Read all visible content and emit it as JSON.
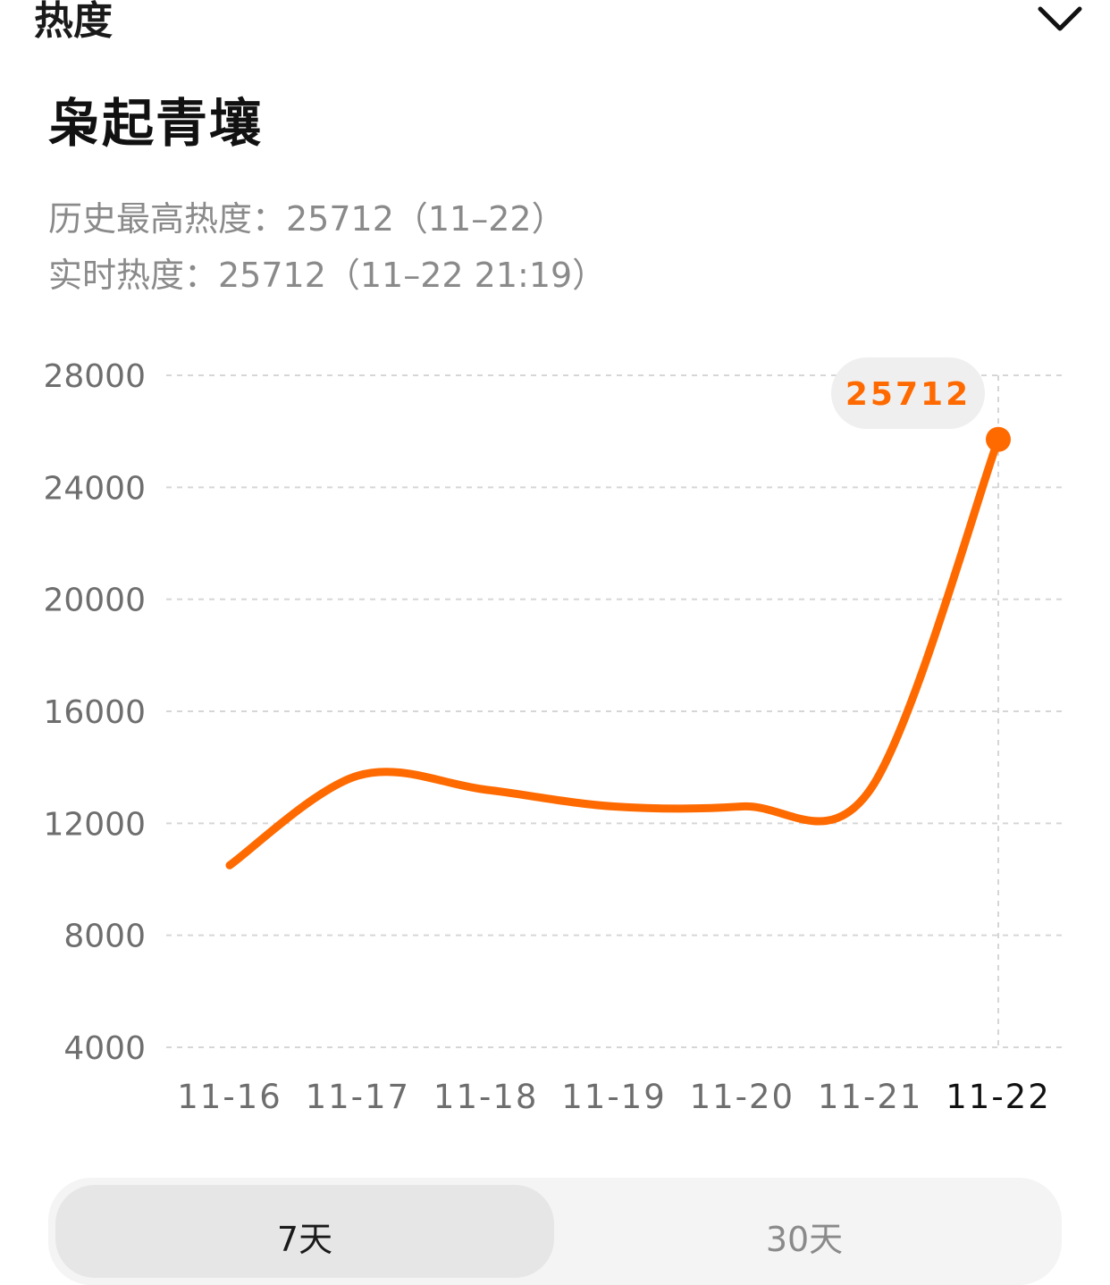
{
  "header": {
    "title": "热度"
  },
  "topic": {
    "title": "枭起青壤"
  },
  "stats": {
    "peak_line": "历史最高热度：25712（11–22）",
    "realtime_line": "实时热度：25712（11–22 21:19）"
  },
  "colors": {
    "accent": "#ff6a00",
    "grid": "#d6d6d6",
    "tick_text": "#6e6e6e",
    "tooltip_bg": "#efefef"
  },
  "chart_data": {
    "type": "line",
    "x": [
      "11-16",
      "11-17",
      "11-18",
      "11-19",
      "11-20",
      "11-21",
      "11-22"
    ],
    "series": [
      {
        "values": [
          10500,
          13700,
          13200,
          12600,
          12600,
          13200,
          25712
        ]
      }
    ],
    "y_ticks": [
      28000,
      24000,
      20000,
      16000,
      12000,
      8000,
      4000
    ],
    "ylim": [
      4000,
      28000
    ],
    "grid": true,
    "highlight": {
      "x": "11-22",
      "label": "25712"
    },
    "title": "",
    "xlabel": "",
    "ylabel": ""
  },
  "range_tabs": {
    "seven_days": "7天",
    "thirty_days": "30天",
    "selected": "7天"
  }
}
